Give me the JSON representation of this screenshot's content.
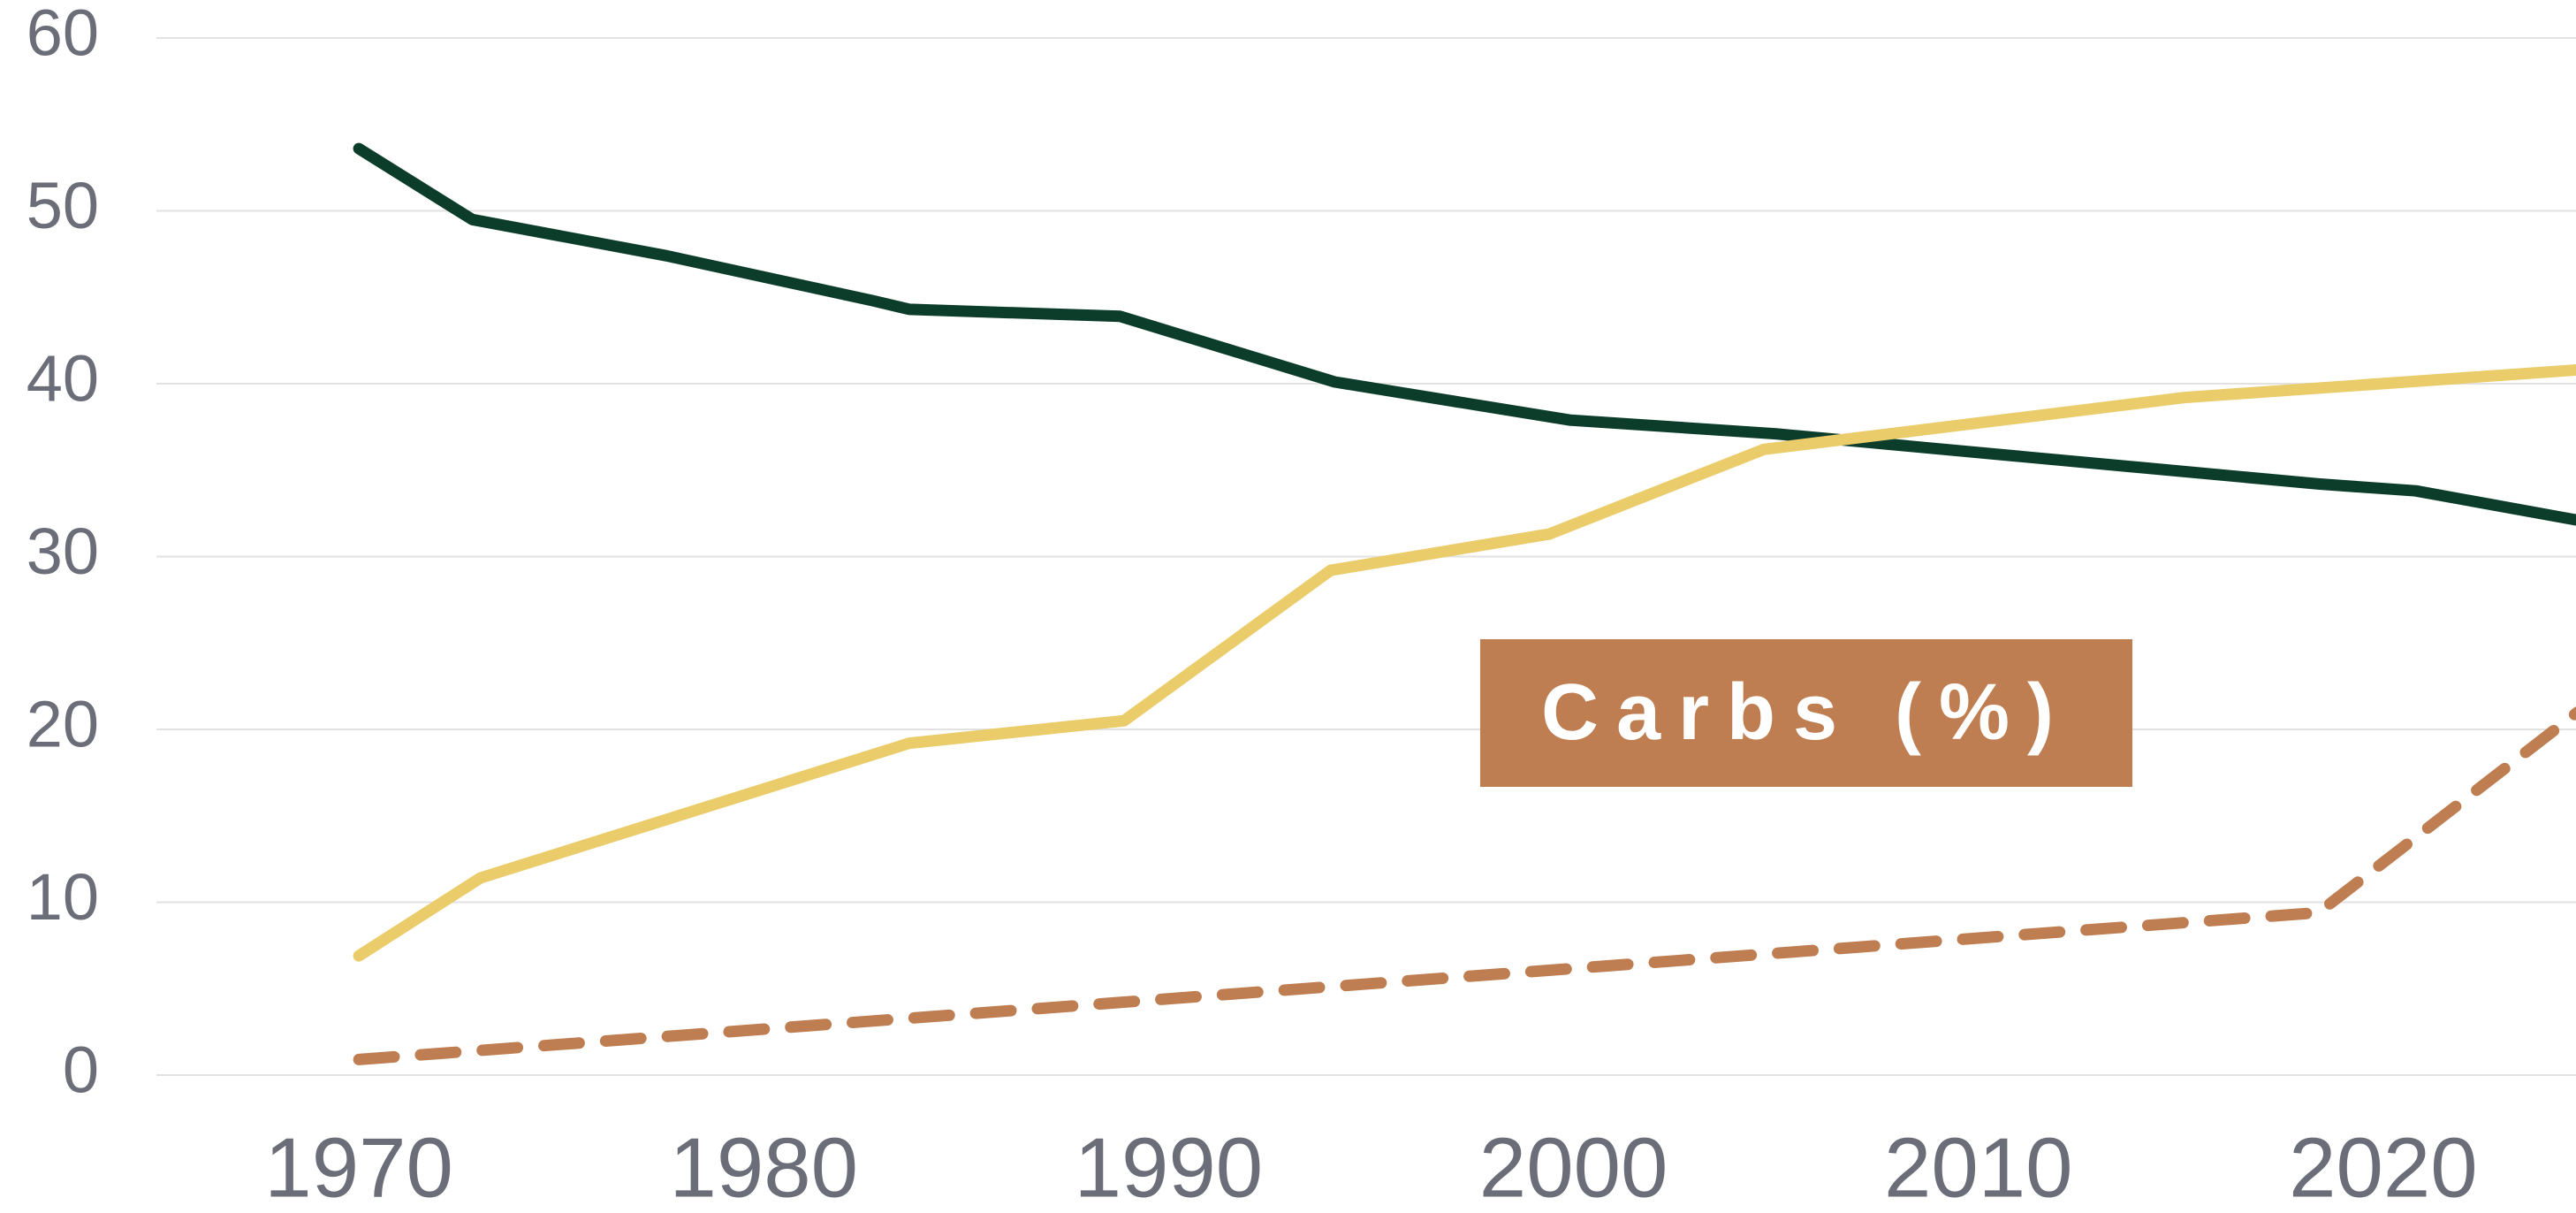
{
  "chart_data": {
    "type": "line",
    "xlim": [
      1965,
      2025
    ],
    "xticks": [
      1970,
      1980,
      1990,
      2000,
      2010,
      2020
    ],
    "ylim": [
      0,
      60
    ],
    "yticks": [
      0,
      10,
      20,
      30,
      40,
      50,
      60
    ],
    "grid": true,
    "series": [
      {
        "color": "#0b3d2a",
        "dashed": false,
        "x": [
          1970,
          1972.8,
          1977.6,
          1982.7,
          1983.6,
          1988.8,
          1994.1,
          1999.9,
          2005,
          2018.4,
          2020.8,
          2024.8
        ],
        "values": [
          53.6,
          49.5,
          47.4,
          44.8,
          44.3,
          43.9,
          40.1,
          37.9,
          37.1,
          34.2,
          33.8,
          32.1
        ]
      },
      {
        "color": "#ebcc6a",
        "dashed": false,
        "x": [
          1970,
          1973,
          1983.6,
          1988.9,
          1994,
          1999.4,
          2004.7,
          2015.1,
          2024.8
        ],
        "values": [
          6.9,
          11.4,
          19.2,
          20.5,
          29.2,
          31.3,
          36.2,
          39.2,
          40.8
        ]
      },
      {
        "name": "Carbs (%)",
        "color": "#be7e51",
        "dashed": true,
        "x": [
          1970,
          2018.4,
          2024.8
        ],
        "values": [
          0.9,
          9.4,
          21.0
        ]
      }
    ]
  }
}
